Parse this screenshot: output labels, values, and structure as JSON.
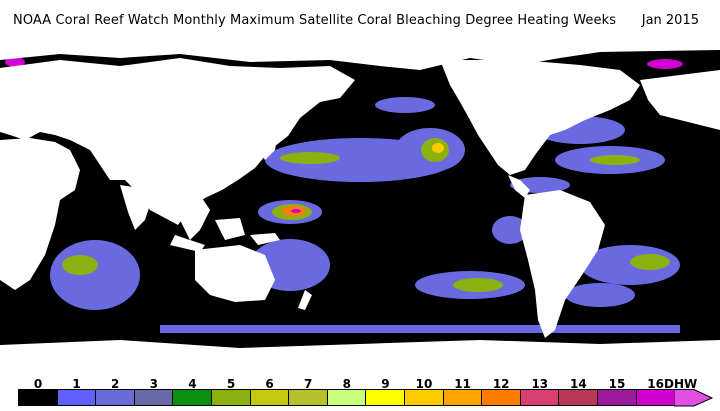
{
  "header": {
    "title": "NOAA Coral Reef Watch Monthly Maximum Satellite Coral Bleaching Degree Heating Weeks",
    "date": "Jan 2015"
  },
  "legend": {
    "ticks": [
      "0",
      "1",
      "2",
      "3",
      "4",
      "5",
      "6",
      "7",
      "8",
      "9",
      "10",
      "11",
      "12",
      "13",
      "14",
      "15",
      "16"
    ],
    "unit": "DHW",
    "colors": [
      "#000000",
      "#6060ff",
      "#6c6cd8",
      "#6a6aa8",
      "#0a9010",
      "#8cb010",
      "#c4c812",
      "#b4c02c",
      "#c8ff7c",
      "#ffff00",
      "#ffcc00",
      "#ffa400",
      "#ff7c00",
      "#d84070",
      "#b83858",
      "#9c1a9c",
      "#d000d0",
      "#e050e0"
    ],
    "colors_note": ""
  },
  "map": {
    "colors": {
      "ocean": "#000000",
      "land": "#ffffff",
      "low": "#6a6ae0",
      "mid": "#8cb010",
      "high": "#ffcc00",
      "hot": "#ff7c00",
      "extreme": "#d000d0"
    }
  }
}
